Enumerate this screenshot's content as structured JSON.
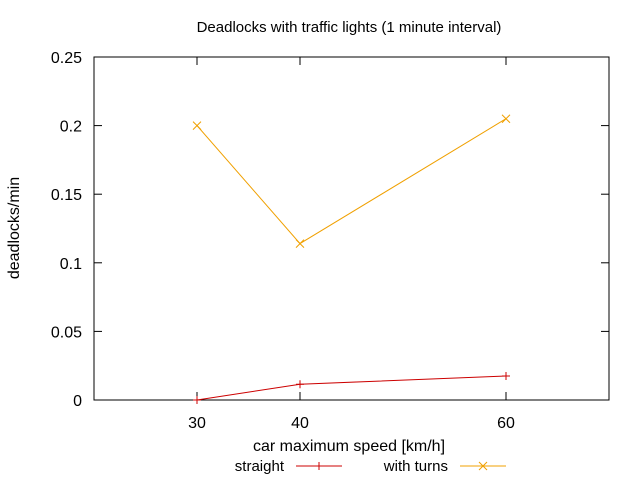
{
  "chart_data": {
    "type": "line",
    "title": "Deadlocks with traffic lights (1 minute interval)",
    "xlabel": "car maximum speed [km/h]",
    "ylabel": "deadlocks/min",
    "xlim": [
      20,
      70
    ],
    "ylim": [
      0,
      0.25
    ],
    "x_ticks": [
      30,
      40,
      60
    ],
    "x_tick_labels": [
      "30",
      "40",
      "60"
    ],
    "y_ticks": [
      0,
      0.05,
      0.1,
      0.15,
      0.2,
      0.25
    ],
    "y_tick_labels": [
      "0",
      "0.05",
      "0.1",
      "0.15",
      "0.2",
      "0.25"
    ],
    "grid": false,
    "legend_position": "bottom-center",
    "series": [
      {
        "name": "straight",
        "x": [
          30,
          40,
          60
        ],
        "values": [
          0.0,
          0.0115,
          0.0175
        ],
        "color": "#cc0000",
        "marker": "plus"
      },
      {
        "name": "with turns",
        "x": [
          30,
          40,
          60
        ],
        "values": [
          0.2,
          0.114,
          0.205
        ],
        "color": "#f0a000",
        "marker": "cross"
      }
    ]
  }
}
